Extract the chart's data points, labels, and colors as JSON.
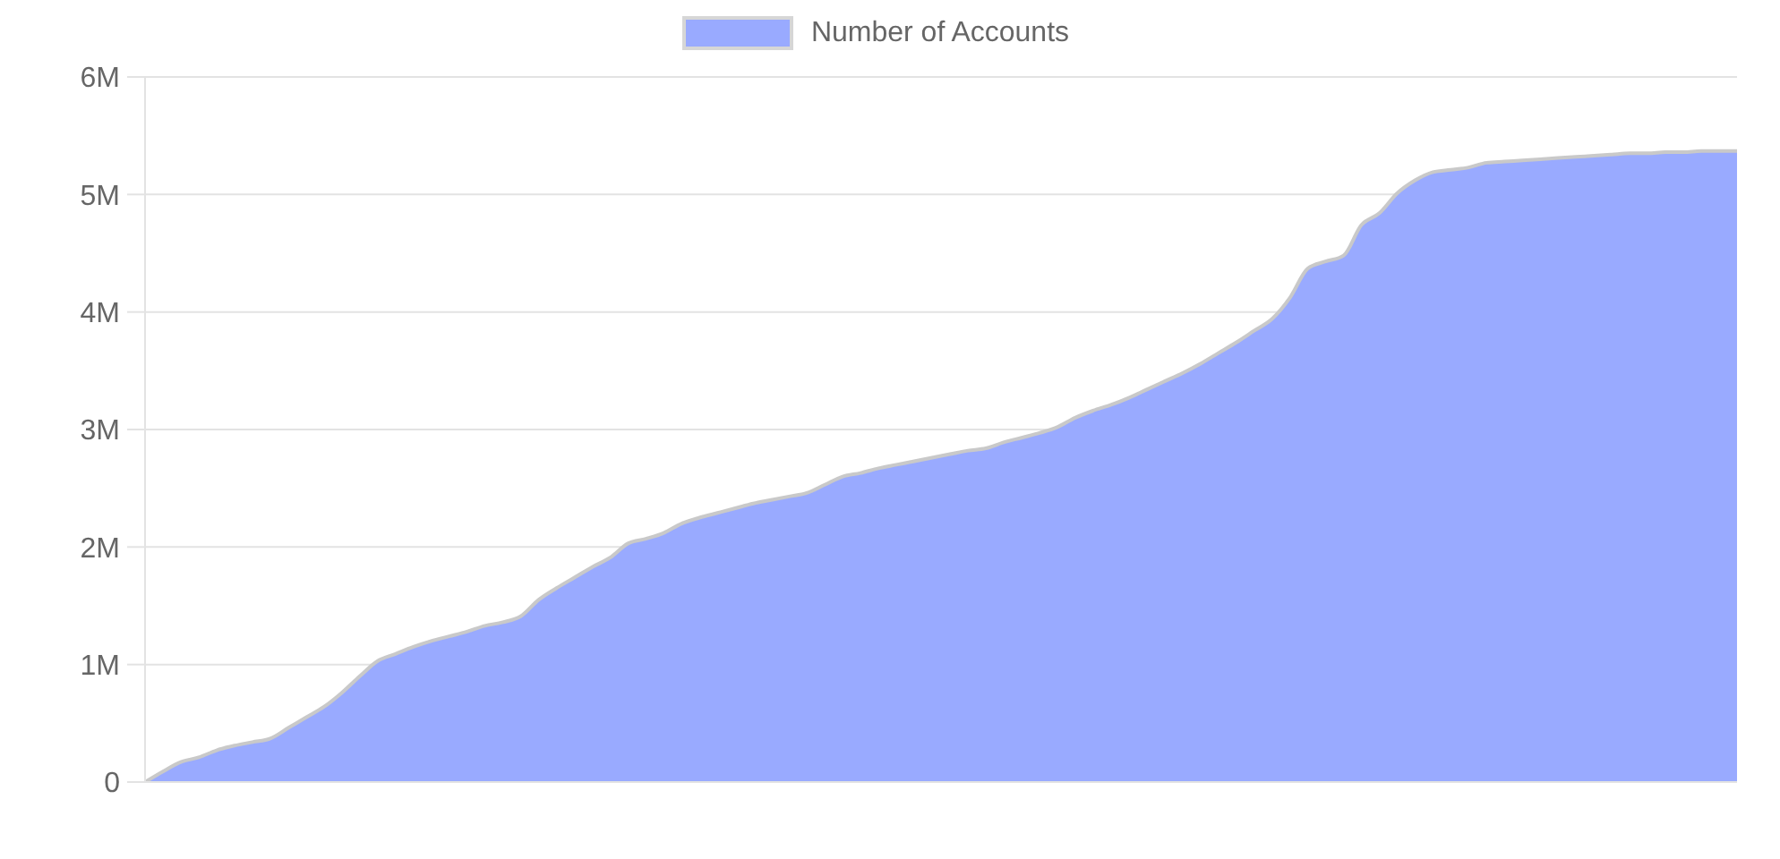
{
  "chart_data": {
    "type": "area",
    "categories": [
      null,
      null,
      null,
      null,
      null,
      null,
      null,
      null,
      null,
      null,
      null,
      null,
      null,
      null,
      null,
      null,
      null,
      null,
      null,
      null,
      null,
      null,
      null,
      null,
      null,
      null,
      null,
      null,
      null,
      null,
      null,
      null,
      null,
      null,
      null,
      null,
      null,
      null,
      null,
      null,
      null,
      null,
      null,
      null,
      null,
      null,
      null,
      null,
      null,
      null,
      null,
      null,
      null,
      null,
      null,
      null,
      null,
      null,
      null,
      null,
      null,
      null,
      null,
      null,
      null,
      null,
      null,
      null,
      null,
      null,
      null,
      null,
      null,
      null,
      null,
      null,
      null,
      null,
      null,
      null,
      null,
      null,
      null,
      null,
      null,
      null,
      null,
      null,
      null,
      null
    ],
    "series": [
      {
        "name": "Number of Accounts",
        "color": "#99aaff",
        "values": [
          0,
          90000,
          170000,
          210000,
          270000,
          310000,
          340000,
          370000,
          460000,
          550000,
          640000,
          760000,
          900000,
          1030000,
          1090000,
          1150000,
          1200000,
          1240000,
          1280000,
          1330000,
          1360000,
          1410000,
          1550000,
          1650000,
          1740000,
          1830000,
          1910000,
          2030000,
          2070000,
          2120000,
          2200000,
          2250000,
          2290000,
          2330000,
          2370000,
          2400000,
          2430000,
          2460000,
          2530000,
          2600000,
          2630000,
          2670000,
          2700000,
          2730000,
          2760000,
          2790000,
          2820000,
          2840000,
          2890000,
          2930000,
          2970000,
          3020000,
          3100000,
          3160000,
          3210000,
          3270000,
          3340000,
          3410000,
          3480000,
          3560000,
          3650000,
          3740000,
          3840000,
          3940000,
          4120000,
          4370000,
          4430000,
          4480000,
          4740000,
          4840000,
          5010000,
          5120000,
          5190000,
          5210000,
          5230000,
          5270000,
          5280000,
          5290000,
          5300000,
          5310000,
          5320000,
          5330000,
          5340000,
          5350000,
          5350000,
          5360000,
          5360000,
          5370000,
          5370000,
          5370000
        ]
      }
    ],
    "ylim": [
      0,
      6000000
    ],
    "yticks": [
      0,
      {
        "value": 1000000,
        "label": "1M"
      },
      {
        "value": 2000000,
        "label": "2M"
      },
      {
        "value": 3000000,
        "label": "3M"
      },
      {
        "value": 4000000,
        "label": "4M"
      },
      {
        "value": 5000000,
        "label": "5M"
      },
      {
        "value": 6000000,
        "label": "6M"
      }
    ],
    "grid": "y",
    "legend": "top",
    "tick_labels": "y"
  }
}
